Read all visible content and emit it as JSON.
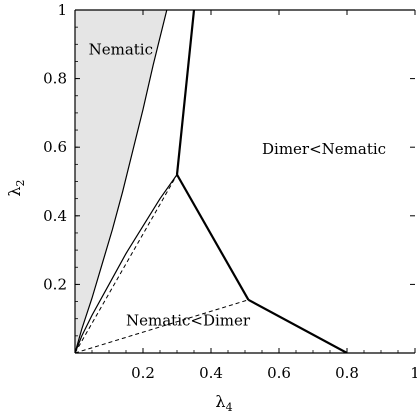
{
  "chart_data": {
    "type": "line",
    "x_axis": {
      "label_main": "λ",
      "label_sub": "4",
      "range": [
        0,
        1
      ],
      "ticks": [
        0.2,
        0.4,
        0.6,
        0.8,
        1
      ],
      "tick_labels": [
        "0.2",
        "0.4",
        "0.6",
        "0.8",
        "1"
      ]
    },
    "y_axis": {
      "label_main": "λ",
      "label_sub": "2",
      "range": [
        0,
        1
      ],
      "ticks": [
        0.2,
        0.4,
        0.6,
        0.8,
        1
      ],
      "tick_labels": [
        "0.2",
        "0.4",
        "0.6",
        "0.8",
        "1"
      ]
    },
    "series": [
      {
        "style": "shaded-boundary",
        "fill_color": "#e5e5e5",
        "points": [
          [
            0,
            0
          ],
          [
            0.02,
            0.07
          ],
          [
            0.05,
            0.16
          ],
          [
            0.08,
            0.26
          ],
          [
            0.11,
            0.36
          ],
          [
            0.14,
            0.47
          ],
          [
            0.17,
            0.59
          ],
          [
            0.2,
            0.71
          ],
          [
            0.23,
            0.84
          ],
          [
            0.27,
            1.0
          ]
        ]
      },
      {
        "style": "solid",
        "points": [
          [
            0,
            0
          ],
          [
            0.02,
            0.05
          ],
          [
            0.05,
            0.11
          ],
          [
            0.1,
            0.2
          ],
          [
            0.15,
            0.29
          ],
          [
            0.2,
            0.37
          ],
          [
            0.25,
            0.45
          ],
          [
            0.3,
            0.52
          ]
        ]
      },
      {
        "style": "dashed",
        "points": [
          [
            0,
            0
          ],
          [
            0.3,
            0.52
          ]
        ]
      },
      {
        "style": "solid-thick",
        "points": [
          [
            0.3,
            0.52
          ],
          [
            0.35,
            1.0
          ]
        ]
      },
      {
        "style": "solid-thick",
        "points": [
          [
            0.3,
            0.52
          ],
          [
            0.51,
            0.155
          ]
        ]
      },
      {
        "style": "dashed",
        "points": [
          [
            0,
            0
          ],
          [
            0.51,
            0.155
          ]
        ]
      },
      {
        "style": "solid-thick",
        "points": [
          [
            0.51,
            0.155
          ],
          [
            0.8,
            0
          ]
        ]
      }
    ],
    "annotations": [
      {
        "text": "Nematic",
        "x": 0.04,
        "y": 0.87
      },
      {
        "text": "Dimer<Nematic",
        "x": 0.55,
        "y": 0.58
      },
      {
        "text": "Nematic<Dimer",
        "x": 0.15,
        "y": 0.08
      }
    ],
    "colors": {
      "shade": "#e5e5e5",
      "line": "#000000"
    }
  }
}
